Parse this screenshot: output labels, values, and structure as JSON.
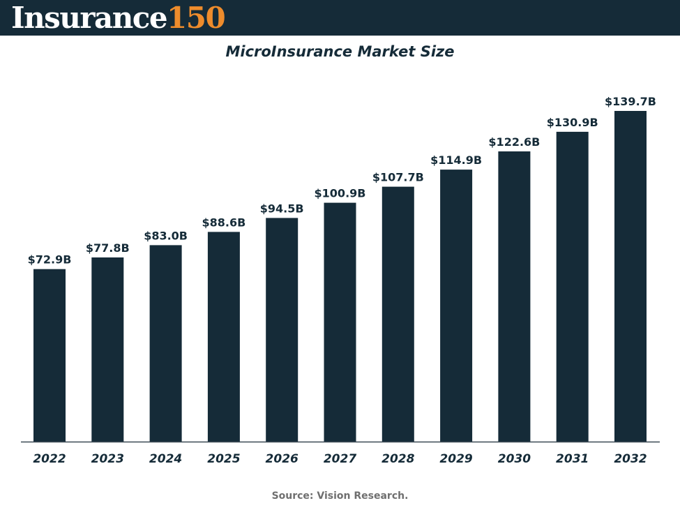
{
  "header": {
    "logo_word": "Insurance",
    "logo_number": "150"
  },
  "colors": {
    "header_bg": "#152b38",
    "bar": "#152b38",
    "logo_accent": "#ee8c2c",
    "source_text": "#6f6f6f"
  },
  "chart_data": {
    "type": "bar",
    "title": "MicroInsurance Market Size",
    "categories": [
      "2022",
      "2023",
      "2024",
      "2025",
      "2026",
      "2027",
      "2028",
      "2029",
      "2030",
      "2031",
      "2032"
    ],
    "values": [
      72.9,
      77.8,
      83.0,
      88.6,
      94.5,
      100.9,
      107.7,
      114.9,
      122.6,
      130.9,
      139.7
    ],
    "data_labels": [
      "$72.9B",
      "$77.8B",
      "$83.0B",
      "$88.6B",
      "$94.5B",
      "$100.9B",
      "$107.7B",
      "$114.9B",
      "$122.6B",
      "$130.9B",
      "$139.7B"
    ],
    "unit": "USD billions",
    "xlabel": "",
    "ylabel": "",
    "ylim": [
      0,
      139.7
    ],
    "grid": false,
    "legend": "none"
  },
  "footer": {
    "source": "Source: Vision Research."
  }
}
